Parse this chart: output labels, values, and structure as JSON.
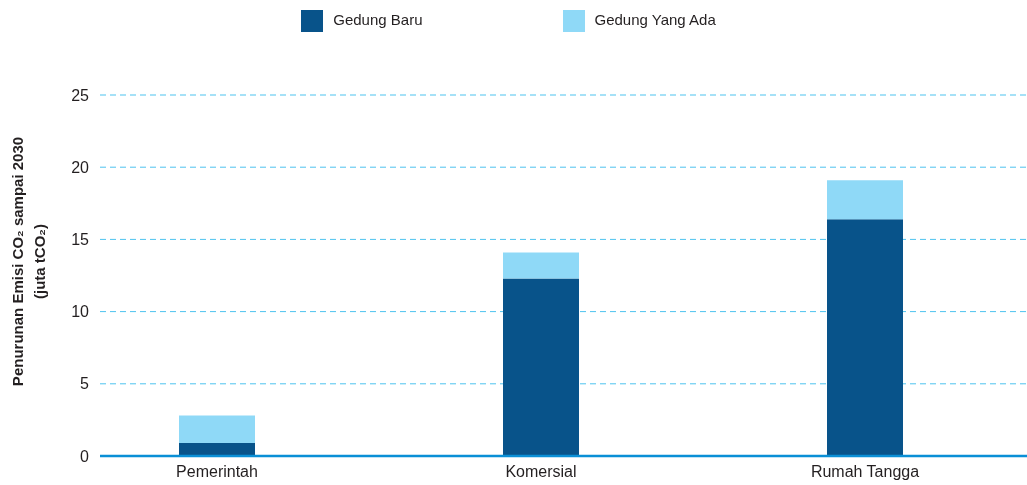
{
  "chart_data": {
    "type": "bar",
    "ylabel": "Penurunan Emisi CO₂ sampai 2030\n(juta tCO₂)",
    "categories": [
      "Pemerintah",
      "Komersial",
      "Rumah Tangga"
    ],
    "series": [
      {
        "name": "Gedung Baru",
        "color": "#08538a",
        "values": [
          0.9,
          12.3,
          16.4
        ]
      },
      {
        "name": "Gedung Yang Ada",
        "color": "#8fd9f7",
        "values": [
          1.9,
          1.8,
          2.7
        ]
      }
    ],
    "stacked": true,
    "ylim": [
      0,
      25
    ],
    "yticks": [
      0,
      5,
      10,
      15,
      20,
      25
    ],
    "grid": "y",
    "legend": "top"
  }
}
